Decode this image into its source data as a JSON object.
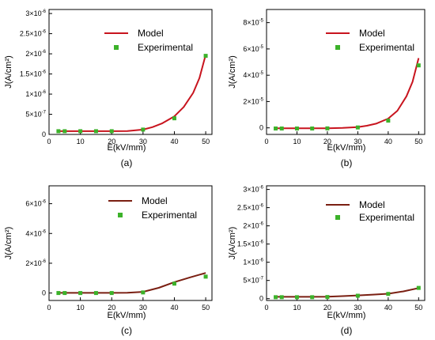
{
  "chart_data": [
    {
      "type": "line",
      "panel_label": "(a)",
      "xlabel": "E(kV/mm)",
      "ylabel": "J(A/cm²)",
      "xlim": [
        0,
        52
      ],
      "ylim": [
        0,
        3.1e-06
      ],
      "x_ticks": [
        {
          "v": 0,
          "label": "0"
        },
        {
          "v": 10,
          "label": "10"
        },
        {
          "v": 20,
          "label": "20"
        },
        {
          "v": 30,
          "label": "30"
        },
        {
          "v": 40,
          "label": "40"
        },
        {
          "v": 50,
          "label": "50"
        }
      ],
      "y_ticks": [
        {
          "v": 0,
          "base": "0",
          "exp": ""
        },
        {
          "v": 5e-07,
          "base": "5×10",
          "exp": "-7"
        },
        {
          "v": 1e-06,
          "base": "1×10",
          "exp": "-6"
        },
        {
          "v": 1.5e-06,
          "base": "1.5×10",
          "exp": "-6"
        },
        {
          "v": 2e-06,
          "base": "2×10",
          "exp": "-6"
        },
        {
          "v": 2.5e-06,
          "base": "2.5×10",
          "exp": "-6"
        },
        {
          "v": 3e-06,
          "base": "3×10",
          "exp": "-6"
        }
      ],
      "model_color": "#c8141e",
      "series": [
        {
          "name": "Model",
          "kind": "line",
          "x": [
            3,
            5,
            10,
            15,
            20,
            25,
            30,
            33,
            36,
            40,
            43,
            46,
            48,
            50
          ],
          "y": [
            8e-08,
            8e-08,
            8e-08,
            8e-08,
            8e-08,
            8.5e-08,
            1.2e-07,
            1.8e-07,
            2.7e-07,
            4.5e-07,
            6.8e-07,
            1.03e-06,
            1.4e-06,
            1.98e-06
          ]
        },
        {
          "name": "Experimental",
          "kind": "scatter",
          "x": [
            3,
            5,
            10,
            15,
            20,
            30,
            40,
            50
          ],
          "y": [
            8e-08,
            8e-08,
            8e-08,
            8e-08,
            8e-08,
            1.2e-07,
            4e-07,
            1.95e-06
          ]
        }
      ],
      "legend": "top-right"
    },
    {
      "type": "line",
      "panel_label": "(b)",
      "xlabel": "E(kV/mm)",
      "ylabel": "J(A/cm²)",
      "xlim": [
        0,
        52
      ],
      "ylim": [
        -5e-06,
        9e-05
      ],
      "x_ticks": [
        {
          "v": 0,
          "label": "0"
        },
        {
          "v": 10,
          "label": "10"
        },
        {
          "v": 20,
          "label": "20"
        },
        {
          "v": 30,
          "label": "30"
        },
        {
          "v": 40,
          "label": "40"
        },
        {
          "v": 50,
          "label": "50"
        }
      ],
      "y_ticks": [
        {
          "v": 0,
          "base": "0",
          "exp": ""
        },
        {
          "v": 2e-05,
          "base": "2×10",
          "exp": "-5"
        },
        {
          "v": 4e-05,
          "base": "4×10",
          "exp": "-5"
        },
        {
          "v": 6e-05,
          "base": "6×10",
          "exp": "-5"
        },
        {
          "v": 8e-05,
          "base": "8×10",
          "exp": "-5"
        }
      ],
      "model_color": "#c8141e",
      "series": [
        {
          "name": "Model",
          "kind": "line",
          "x": [
            3,
            5,
            10,
            15,
            20,
            25,
            30,
            33,
            36,
            40,
            43,
            46,
            48,
            50
          ],
          "y": [
            -4e-07,
            -4e-07,
            -4e-07,
            -4e-07,
            -3e-07,
            0,
            6e-07,
            1.6e-06,
            3.2e-06,
            7e-06,
            1.3e-05,
            2.4e-05,
            3.5e-05,
            5.3e-05
          ]
        },
        {
          "name": "Experimental",
          "kind": "scatter",
          "x": [
            3,
            5,
            10,
            15,
            20,
            30,
            40,
            50
          ],
          "y": [
            -5e-07,
            -5e-07,
            -5e-07,
            -5e-07,
            -4e-07,
            3e-07,
            5.5e-06,
            4.75e-05
          ]
        }
      ],
      "legend": "top-right"
    },
    {
      "type": "line",
      "panel_label": "(c)",
      "xlabel": "E(kV/mm)",
      "ylabel": "J(A/cm²)",
      "xlim": [
        0,
        52
      ],
      "ylim": [
        -5e-07,
        7.2e-06
      ],
      "x_ticks": [
        {
          "v": 0,
          "label": "0"
        },
        {
          "v": 10,
          "label": "10"
        },
        {
          "v": 20,
          "label": "20"
        },
        {
          "v": 30,
          "label": "30"
        },
        {
          "v": 40,
          "label": "40"
        },
        {
          "v": 50,
          "label": "50"
        }
      ],
      "y_ticks": [
        {
          "v": 0,
          "base": "0",
          "exp": ""
        },
        {
          "v": 2e-06,
          "base": "2×10",
          "exp": "-6"
        },
        {
          "v": 4e-06,
          "base": "4×10",
          "exp": "-6"
        },
        {
          "v": 6e-06,
          "base": "6×10",
          "exp": "-6"
        }
      ],
      "model_color": "#7a1f12",
      "series": [
        {
          "name": "Model",
          "kind": "line",
          "x": [
            3,
            5,
            10,
            15,
            20,
            25,
            30,
            35,
            40,
            45,
            50
          ],
          "y": [
            1e-08,
            1e-08,
            1e-08,
            1e-08,
            1e-08,
            2e-08,
            8e-08,
            3.5e-07,
            7.3e-07,
            1.05e-06,
            1.35e-06
          ]
        },
        {
          "name": "Experimental",
          "kind": "scatter",
          "x": [
            3,
            5,
            10,
            15,
            20,
            30,
            40,
            50
          ],
          "y": [
            0,
            0,
            0,
            0,
            0,
            4e-08,
            6.3e-07,
            1.1e-06
          ]
        }
      ],
      "legend": "top-right"
    },
    {
      "type": "line",
      "panel_label": "(d)",
      "xlabel": "E(kV/mm)",
      "ylabel": "J(A/cm²)",
      "xlim": [
        0,
        52
      ],
      "ylim": [
        -5e-08,
        3.1e-06
      ],
      "x_ticks": [
        {
          "v": 0,
          "label": "0"
        },
        {
          "v": 10,
          "label": "10"
        },
        {
          "v": 20,
          "label": "20"
        },
        {
          "v": 30,
          "label": "30"
        },
        {
          "v": 40,
          "label": "40"
        },
        {
          "v": 50,
          "label": "50"
        }
      ],
      "y_ticks": [
        {
          "v": 0,
          "base": "0",
          "exp": ""
        },
        {
          "v": 5e-07,
          "base": "5×10",
          "exp": "-7"
        },
        {
          "v": 1e-06,
          "base": "1×10",
          "exp": "-6"
        },
        {
          "v": 1.5e-06,
          "base": "1.5×10",
          "exp": "-6"
        },
        {
          "v": 2e-06,
          "base": "2×10",
          "exp": "-6"
        },
        {
          "v": 2.5e-06,
          "base": "2.5×10",
          "exp": "-6"
        },
        {
          "v": 3e-06,
          "base": "3×10",
          "exp": "-6"
        }
      ],
      "model_color": "#7a1f12",
      "series": [
        {
          "name": "Model",
          "kind": "line",
          "x": [
            3,
            5,
            10,
            15,
            20,
            25,
            30,
            35,
            40,
            45,
            50
          ],
          "y": [
            5e-08,
            5e-08,
            5e-08,
            5e-08,
            5.5e-08,
            7e-08,
            9e-08,
            1.1e-07,
            1.35e-07,
            2e-07,
            2.9e-07
          ]
        },
        {
          "name": "Experimental",
          "kind": "scatter",
          "x": [
            3,
            5,
            10,
            15,
            20,
            30,
            40,
            50
          ],
          "y": [
            4e-08,
            4e-08,
            4e-08,
            4e-08,
            4.5e-08,
            8e-08,
            1.3e-07,
            2.95e-07
          ]
        }
      ],
      "legend": "top-right"
    }
  ],
  "marker_color": "#3cb22a"
}
